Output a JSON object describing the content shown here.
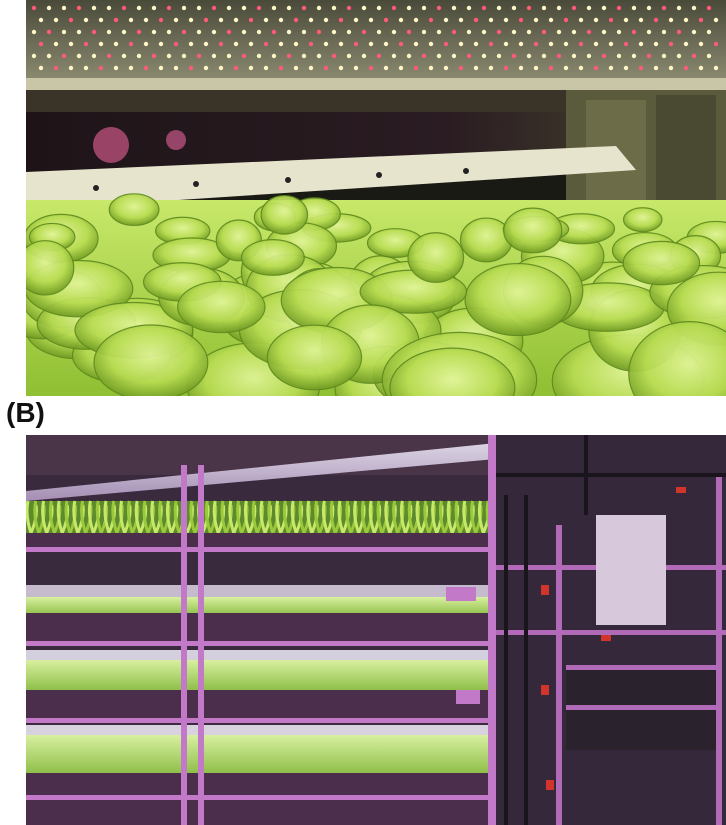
{
  "figure": {
    "panel_b_label": "(B)"
  },
  "colors": {
    "lettuce_light": "#c8e86a",
    "lettuce_mid": "#9cc83c",
    "lettuce_dark": "#5f8a1e",
    "led_warm": "#fff6c8",
    "led_red": "#ff5a7a",
    "rack_magenta": "#c27ac8",
    "room_dark": "#2a2030"
  }
}
